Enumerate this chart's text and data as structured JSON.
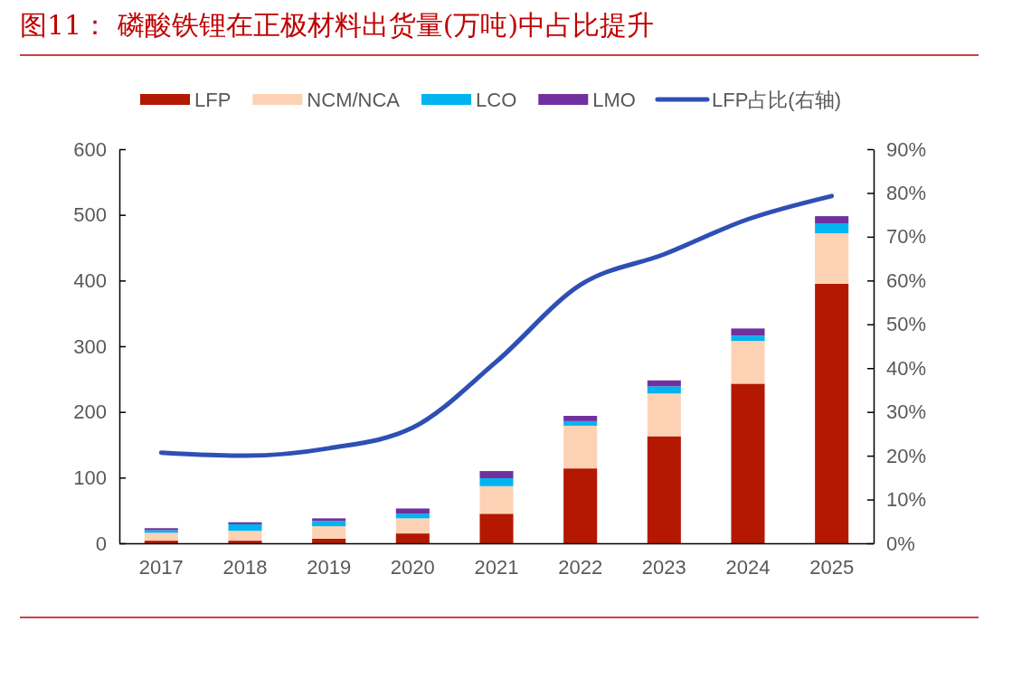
{
  "chart_data": {
    "type": "bar",
    "title": "图11：   磷酸铁锂在正极材料出货量(万吨)中占比提升",
    "categories": [
      "2017",
      "2018",
      "2019",
      "2020",
      "2021",
      "2022",
      "2023",
      "2024",
      "2025"
    ],
    "stacked": true,
    "series": [
      {
        "name": "LFP",
        "color": "#b41800",
        "values": [
          4,
          4,
          7,
          15,
          45,
          114,
          163,
          243,
          395
        ]
      },
      {
        "name": "NCM/NCA",
        "color": "#fdd2b4",
        "values": [
          12,
          15,
          19,
          23,
          42,
          65,
          65,
          65,
          77
        ]
      },
      {
        "name": "LCO",
        "color": "#00b4f0",
        "values": [
          4,
          10,
          8,
          7,
          12,
          7,
          11,
          8,
          15
        ]
      },
      {
        "name": "LMO",
        "color": "#7030a0",
        "values": [
          3,
          3,
          4,
          8,
          11,
          8,
          9,
          11,
          11
        ]
      },
      {
        "name": "LFP占比(右轴)",
        "type": "line",
        "axis": "y2",
        "color": "#2e4fb5",
        "values": [
          20.7,
          20,
          21.7,
          26.4,
          41.5,
          59,
          66,
          74,
          79.3
        ]
      }
    ],
    "ylim": [
      0,
      600
    ],
    "yticks": [
      0,
      100,
      200,
      300,
      400,
      500,
      600
    ],
    "y2lim": [
      0,
      90
    ],
    "y2ticks": [
      {
        "value": 0,
        "label": "0%"
      },
      {
        "value": 10,
        "label": "10%"
      },
      {
        "value": 20,
        "label": "20%"
      },
      {
        "value": 30,
        "label": "30%"
      },
      {
        "value": 40,
        "label": "40%"
      },
      {
        "value": 50,
        "label": "50%"
      },
      {
        "value": 60,
        "label": "60%"
      },
      {
        "value": 70,
        "label": "70%"
      },
      {
        "value": 80,
        "label": "80%"
      },
      {
        "value": 90,
        "label": "90%"
      }
    ],
    "legend": "top",
    "grid": false,
    "marker": "none",
    "line_style": "solid"
  }
}
